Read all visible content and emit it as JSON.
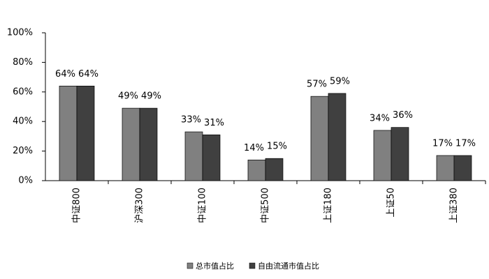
{
  "chart_data": {
    "type": "bar",
    "categories": [
      "中证800",
      "沪深300",
      "中证100",
      "中证500",
      "上证180",
      "上证50",
      "上证380"
    ],
    "series": [
      {
        "name": "总市值占比",
        "color": "#808080",
        "values": [
          64,
          49,
          33,
          14,
          57,
          34,
          17
        ],
        "value_labels": [
          "64%",
          "49%",
          "33%",
          "14%",
          "57%",
          "34%",
          "17%"
        ]
      },
      {
        "name": "自由流通市值占比",
        "color": "#404040",
        "values": [
          64,
          49,
          31,
          15,
          59,
          36,
          17
        ],
        "value_labels": [
          "64%",
          "49%",
          "31%",
          "15%",
          "59%",
          "36%",
          "17%"
        ]
      }
    ],
    "ylim": [
      0,
      100
    ],
    "yticks": [
      {
        "value": 0,
        "label": "0%"
      },
      {
        "value": 20,
        "label": "20%"
      },
      {
        "value": 40,
        "label": "40%"
      },
      {
        "value": 60,
        "label": "60%"
      },
      {
        "value": 80,
        "label": "80%"
      },
      {
        "value": 100,
        "label": "100%"
      }
    ],
    "grid": false,
    "legend": "bottom"
  }
}
